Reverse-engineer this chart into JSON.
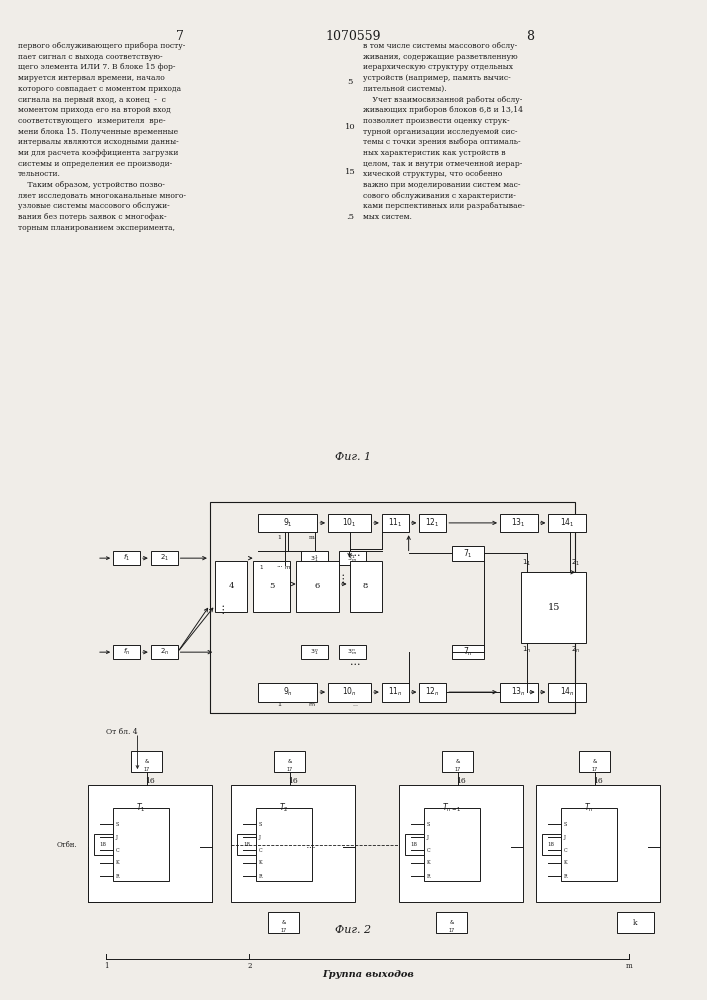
{
  "page_width": 7.07,
  "page_height": 10.0,
  "bg_color": "#f0ede8",
  "text_color": "#1a1a1a",
  "header": {
    "left_num": "7",
    "center_num": "1070559",
    "right_num": "8"
  },
  "left_col_text": "первого обслуживающего прибора посту-\nпает сигнал с выхода соответствую-\nщего элемента ИЛИ 7. В блоке 15 фор-\nмируется интервал времени, начало\nкоторого совпадает с моментом прихода\nсигнала на первый вход, а конец  -  с\nмоментом прихода его на второй вход\nсоответствующего  измерителя  вре-\nмени блока 15. Полученные временные\nинтервалы являются исходными данны-\nми для расчета коэффициента загрузки\nсистемы и определения ее производи-\nтельности.\n    Таким образом, устройство позво-\nляет исследовать многоканальные много-\nузловые системы массового обслужи-\nвания без потерь заявок с многофак-\nторным планированием эксперимента,",
  "right_col_text": "в том числе системы массового обслу-\nживания, содержащие разветвленную\nиерархическую структуру отдельных\nустройств (например, память вычис-\nлительной системы).\n    Учет взаимосвязанной работы обслу-\nживающих приборов блоков 6,8 и 13,14\nпозволяет произвести оценку струк-\nтурной организации исследуемой сис-\nтемы с точки зрения выбора оптималь-\nных характеристик как устройств в\nцелом, так и внутри отмеченной иерар-\nхической структуры, что особенно\nважно при моделировании систем мас-\nсового обслуживания с характеристи-\nками перспективных или разрабатывае-\nмых систем.",
  "fig1_caption": "Фиг. 1",
  "fig2_caption": "Фиг. 2",
  "group_label": "Группа выходов",
  "fig1_label_from_bl4": "От бл. 4",
  "fig2_label_otbn": "Отбн.",
  "line_num_5": "5",
  "line_num_10": "10",
  "line_num_15": "15"
}
